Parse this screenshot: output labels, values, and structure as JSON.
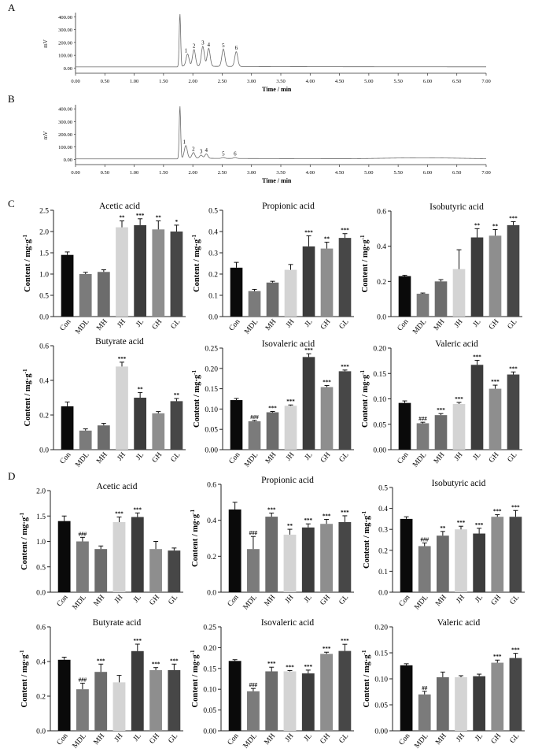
{
  "panel_labels": {
    "A": "A",
    "B": "B",
    "C": "C",
    "D": "D"
  },
  "colors": {
    "Con": "#0a0a0a",
    "MDL": "#7b7b7b",
    "MH": "#6c6c6c",
    "JH": "#d4d4d4",
    "JL": "#3c3c3c",
    "GH": "#8e8e8e",
    "GL": "#474747",
    "trace": "#6b6b6b",
    "axis": "#222222"
  },
  "chart_data": [
    {
      "id": "A",
      "type": "line",
      "xlabel": "Time / min",
      "ylabel": "mV",
      "xlim": [
        0,
        7
      ],
      "ylim": [
        -40,
        420
      ],
      "xticks": [
        "0.00",
        "0.50",
        "1.00",
        "1.50",
        "2.00",
        "2.50",
        "3.00",
        "3.50",
        "4.00",
        "4.50",
        "5.00",
        "5.50",
        "6.00",
        "6.50",
        "7.00"
      ],
      "yticks": [
        "400.00",
        "300.00",
        "200.00",
        "100.00",
        "0.00"
      ],
      "baseline": 10,
      "peaks": [
        {
          "label": "",
          "t": 1.78,
          "h": 420
        },
        {
          "label": "1",
          "t": 1.91,
          "h": 95
        },
        {
          "label": "2",
          "t": 2.02,
          "h": 130
        },
        {
          "label": "3",
          "t": 2.17,
          "h": 155
        },
        {
          "label": "4",
          "t": 2.27,
          "h": 140
        },
        {
          "label": "5",
          "t": 2.52,
          "h": 135
        },
        {
          "label": "6",
          "t": 2.74,
          "h": 115
        }
      ]
    },
    {
      "id": "B",
      "type": "line",
      "xlabel": "Time / min",
      "ylabel": "mV",
      "xlim": [
        0,
        7
      ],
      "ylim": [
        -40,
        420
      ],
      "xticks": [
        "0.00",
        "0.50",
        "1.00",
        "1.50",
        "2.00",
        "2.50",
        "3.00",
        "3.50",
        "4.00",
        "4.50",
        "5.00",
        "5.50",
        "6.00",
        "6.50",
        "7.00"
      ],
      "yticks": [
        "400.00",
        "300.00",
        "200.00",
        "100.00",
        "0.00"
      ],
      "baseline": 5,
      "peaks": [
        {
          "label": "",
          "t": 1.78,
          "h": 420
        },
        {
          "label": "1",
          "t": 1.88,
          "h": 100
        },
        {
          "label": "2",
          "t": 2.01,
          "h": 45
        },
        {
          "label": "3",
          "t": 2.14,
          "h": 25
        },
        {
          "label": "4",
          "t": 2.23,
          "h": 35
        },
        {
          "label": "5",
          "t": 2.52,
          "h": 8
        },
        {
          "label": "6",
          "t": 2.72,
          "h": 8
        }
      ]
    },
    {
      "id": "C1",
      "type": "bar",
      "title": "Acetic acid",
      "ylabel": "Content / mg·g",
      "ylabel_sup": "-1",
      "categories": [
        "Con",
        "MDL",
        "MH",
        "JH",
        "JL",
        "GH",
        "GL"
      ],
      "values": [
        1.45,
        1.0,
        1.05,
        2.1,
        2.15,
        2.05,
        2.0
      ],
      "errors": [
        0.07,
        0.04,
        0.05,
        0.15,
        0.15,
        0.2,
        0.15
      ],
      "sig": [
        "",
        "",
        "",
        "**",
        "***",
        "**",
        "*"
      ],
      "ylim": [
        0,
        2.5
      ],
      "yticks": [
        "0.0",
        "0.5",
        "1.0",
        "1.5",
        "2.0",
        "2.5"
      ]
    },
    {
      "id": "C2",
      "type": "bar",
      "title": "Propionic acid",
      "ylabel": "Content / mg·g",
      "ylabel_sup": "-1",
      "categories": [
        "Con",
        "MDL",
        "MH",
        "JH",
        "JL",
        "GH",
        "GL"
      ],
      "values": [
        0.23,
        0.12,
        0.16,
        0.22,
        0.33,
        0.32,
        0.37
      ],
      "errors": [
        0.025,
        0.008,
        0.006,
        0.025,
        0.05,
        0.03,
        0.02
      ],
      "sig": [
        "",
        "",
        "",
        "",
        "***",
        "**",
        "***"
      ],
      "ylim": [
        0,
        0.5
      ],
      "yticks": [
        "0.0",
        "0.1",
        "0.2",
        "0.3",
        "0.4",
        "0.5"
      ]
    },
    {
      "id": "C3",
      "type": "bar",
      "title": "Isobutyric acid",
      "ylabel": "Content / mg·g",
      "ylabel_sup": "-1",
      "categories": [
        "Con",
        "MDL",
        "MH",
        "JH",
        "JL",
        "GH",
        "GL"
      ],
      "values": [
        0.23,
        0.13,
        0.2,
        0.27,
        0.45,
        0.46,
        0.52
      ],
      "errors": [
        0.005,
        0.004,
        0.01,
        0.11,
        0.05,
        0.035,
        0.02
      ],
      "sig": [
        "",
        "",
        "",
        "",
        "**",
        "**",
        "***"
      ],
      "ylim": [
        0,
        0.6
      ],
      "yticks": [
        "0.0",
        "0.2",
        "0.4",
        "0.6"
      ]
    },
    {
      "id": "C4",
      "type": "bar",
      "title": "Butyrate acid",
      "ylabel": "Content / mg·g",
      "ylabel_sup": "-1",
      "categories": [
        "Con",
        "MDL",
        "MH",
        "JH",
        "JL",
        "GH",
        "GL"
      ],
      "values": [
        0.25,
        0.11,
        0.14,
        0.48,
        0.3,
        0.21,
        0.28
      ],
      "errors": [
        0.025,
        0.01,
        0.012,
        0.025,
        0.03,
        0.01,
        0.015
      ],
      "sig": [
        "",
        "",
        "",
        "***",
        "**",
        "",
        "**"
      ],
      "ylim": [
        0,
        0.6
      ],
      "yticks": [
        "0.0",
        "0.2",
        "0.4",
        "0.6"
      ]
    },
    {
      "id": "C5",
      "type": "bar",
      "title": "Isovaleric acid",
      "ylabel": "Content / mg·g",
      "ylabel_sup": "-1",
      "categories": [
        "Con",
        "MDL",
        "MH",
        "JH",
        "JL",
        "GH",
        "GL"
      ],
      "values": [
        0.122,
        0.07,
        0.092,
        0.108,
        0.228,
        0.154,
        0.193
      ],
      "errors": [
        0.004,
        0.002,
        0.002,
        0.002,
        0.008,
        0.004,
        0.003
      ],
      "sig": [
        "",
        "###",
        "***",
        "***",
        "***",
        "***",
        "***"
      ],
      "ylim": [
        0,
        0.25
      ],
      "yticks": [
        "0.00",
        "0.05",
        "0.10",
        "0.15",
        "0.20",
        "0.25"
      ]
    },
    {
      "id": "C6",
      "type": "bar",
      "title": "Valeric acid",
      "ylabel": "Content / mg·g",
      "ylabel_sup": "-1",
      "categories": [
        "Con",
        "MDL",
        "MH",
        "JH",
        "JL",
        "GH",
        "GL"
      ],
      "values": [
        0.092,
        0.052,
        0.068,
        0.09,
        0.167,
        0.12,
        0.148
      ],
      "errors": [
        0.004,
        0.002,
        0.003,
        0.003,
        0.009,
        0.007,
        0.005
      ],
      "sig": [
        "",
        "###",
        "***",
        "***",
        "***",
        "***",
        "***"
      ],
      "ylim": [
        0,
        0.2
      ],
      "yticks": [
        "0.00",
        "0.05",
        "0.10",
        "0.15",
        "0.20"
      ]
    },
    {
      "id": "D1",
      "type": "bar",
      "title": "Acetic acid",
      "ylabel": "Content / mg·g",
      "ylabel_sup": "-1",
      "categories": [
        "Con",
        "MDL",
        "MH",
        "JH",
        "JL",
        "GH",
        "GL"
      ],
      "values": [
        1.4,
        1.0,
        0.85,
        1.38,
        1.48,
        0.85,
        0.82
      ],
      "errors": [
        0.1,
        0.08,
        0.06,
        0.1,
        0.08,
        0.15,
        0.05
      ],
      "sig": [
        "",
        "###",
        "",
        "***",
        "***",
        "",
        ""
      ],
      "ylim": [
        0,
        2.0
      ],
      "yticks": [
        "0.0",
        "0.5",
        "1.0",
        "1.5",
        "2.0"
      ]
    },
    {
      "id": "D2",
      "type": "bar",
      "title": "Propionic acid",
      "ylabel": "Content / mg·g",
      "ylabel_sup": "-1",
      "categories": [
        "Con",
        "MDL",
        "MH",
        "JH",
        "JL",
        "GH",
        "GL"
      ],
      "values": [
        0.46,
        0.24,
        0.42,
        0.32,
        0.36,
        0.38,
        0.39
      ],
      "errors": [
        0.04,
        0.07,
        0.02,
        0.03,
        0.02,
        0.025,
        0.035
      ],
      "sig": [
        "",
        "###",
        "***",
        "**",
        "***",
        "***",
        "***"
      ],
      "ylim": [
        0,
        0.6
      ],
      "yticks": [
        "0.0",
        "0.2",
        "0.4",
        "0.6"
      ]
    },
    {
      "id": "D3",
      "type": "bar",
      "title": "Isobutyric acid",
      "ylabel": "Content / mg·g",
      "ylabel_sup": "-1",
      "categories": [
        "Con",
        "MDL",
        "MH",
        "JH",
        "JL",
        "GH",
        "GL"
      ],
      "values": [
        0.35,
        0.22,
        0.27,
        0.3,
        0.28,
        0.36,
        0.36
      ],
      "errors": [
        0.01,
        0.015,
        0.02,
        0.015,
        0.025,
        0.01,
        0.03
      ],
      "sig": [
        "",
        "###",
        "**",
        "***",
        "***",
        "***",
        "***"
      ],
      "ylim": [
        0,
        0.5
      ],
      "yticks": [
        "0.0",
        "0.1",
        "0.2",
        "0.3",
        "0.4",
        "0.5"
      ]
    },
    {
      "id": "D4",
      "type": "bar",
      "title": "Butyrate acid",
      "ylabel": "Content / mg·g",
      "ylabel_sup": "-1",
      "categories": [
        "Con",
        "MDL",
        "MH",
        "JH",
        "JL",
        "GH",
        "GL"
      ],
      "values": [
        0.41,
        0.24,
        0.34,
        0.28,
        0.46,
        0.35,
        0.35
      ],
      "errors": [
        0.015,
        0.035,
        0.045,
        0.04,
        0.04,
        0.015,
        0.035
      ],
      "sig": [
        "",
        "###",
        "***",
        "",
        "***",
        "***",
        "***"
      ],
      "ylim": [
        0,
        0.6
      ],
      "yticks": [
        "0.0",
        "0.2",
        "0.4",
        "0.6"
      ]
    },
    {
      "id": "D5",
      "type": "bar",
      "title": "Isovaleric acid",
      "ylabel": "Content / mg·g",
      "ylabel_sup": "-1",
      "categories": [
        "Con",
        "MDL",
        "MH",
        "JH",
        "JL",
        "GH",
        "GL"
      ],
      "values": [
        0.168,
        0.095,
        0.143,
        0.143,
        0.138,
        0.185,
        0.192
      ],
      "errors": [
        0.003,
        0.007,
        0.01,
        0.002,
        0.008,
        0.004,
        0.016
      ],
      "sig": [
        "",
        "###",
        "***",
        "***",
        "***",
        "***",
        "***"
      ],
      "ylim": [
        0,
        0.25
      ],
      "yticks": [
        "0.00",
        "0.05",
        "0.10",
        "0.15",
        "0.20",
        "0.25"
      ]
    },
    {
      "id": "D6",
      "type": "bar",
      "title": "Valeric acid",
      "ylabel": "Content / mg·g",
      "ylabel_sup": "-1",
      "categories": [
        "Con",
        "MDL",
        "MH",
        "JH",
        "JL",
        "GH",
        "GL"
      ],
      "values": [
        0.126,
        0.07,
        0.103,
        0.103,
        0.105,
        0.131,
        0.14
      ],
      "errors": [
        0.003,
        0.006,
        0.01,
        0.003,
        0.004,
        0.005,
        0.009
      ],
      "sig": [
        "",
        "##",
        "",
        "",
        "",
        "***",
        "***"
      ],
      "ylim": [
        0,
        0.2
      ],
      "yticks": [
        "0.00",
        "0.05",
        "0.10",
        "0.15",
        "0.20"
      ]
    }
  ]
}
